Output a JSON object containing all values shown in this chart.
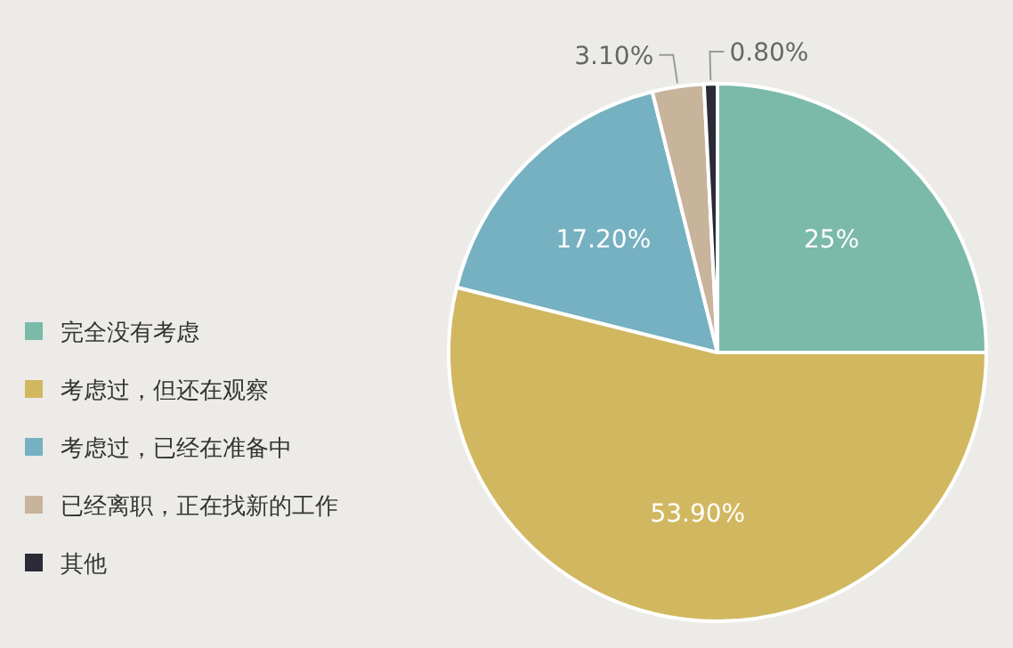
{
  "chart_data": {
    "type": "pie",
    "categories": [
      "完全没有考虑",
      "考虑过，但还在观察",
      "考虑过，已经在准备中",
      "已经离职，正在找新的工作",
      "其他"
    ],
    "values": [
      25,
      53.9,
      17.2,
      3.1,
      0.8
    ],
    "colors": [
      "#7bbaa9",
      "#d1b860",
      "#76b1c1",
      "#c8b39b",
      "#2b2b38"
    ],
    "value_labels": [
      "25%",
      "53.90%",
      "17.20%",
      "3.10%",
      "0.80%"
    ],
    "legend": "left"
  }
}
